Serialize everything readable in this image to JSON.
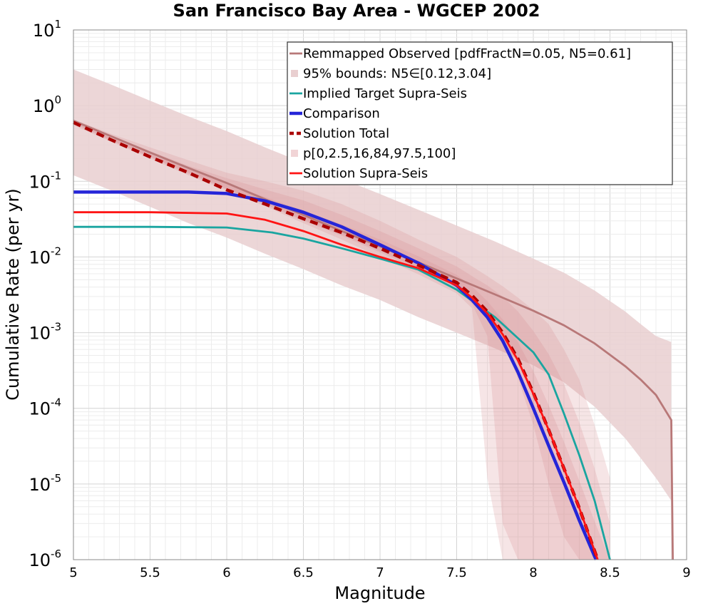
{
  "chart_data": {
    "type": "line",
    "title": "San Francisco Bay Area - WGCEP 2002",
    "xlabel": "Magnitude",
    "ylabel": "Cumulative Rate (per yr)",
    "xlim": [
      5,
      9
    ],
    "ylim": [
      1e-06,
      10
    ],
    "yscale": "log",
    "grid": true,
    "legend_position": "top-right",
    "x_ticks": [
      "5",
      "5.5",
      "6",
      "6.5",
      "7",
      "7.5",
      "8",
      "8.5",
      "9"
    ],
    "y_ticks": [
      {
        "base": "10",
        "exp": "1",
        "value": 10
      },
      {
        "base": "10",
        "exp": "0",
        "value": 1
      },
      {
        "base": "10",
        "exp": "-1",
        "value": 0.1
      },
      {
        "base": "10",
        "exp": "-2",
        "value": 0.01
      },
      {
        "base": "10",
        "exp": "-3",
        "value": 0.001
      },
      {
        "base": "10",
        "exp": "-4",
        "value": 0.0001
      },
      {
        "base": "10",
        "exp": "-5",
        "value": 1e-05
      },
      {
        "base": "10",
        "exp": "-6",
        "value": 1e-06
      }
    ],
    "series": [
      {
        "name": "Remmapped Observed [pdfFractN=0.05, N5=0.61]",
        "color": "#b87878",
        "style": "solid",
        "x": [
          5.0,
          5.25,
          5.5,
          5.75,
          6.0,
          6.25,
          6.5,
          6.75,
          7.0,
          7.25,
          7.5,
          7.75,
          8.0,
          8.2,
          8.4,
          8.6,
          8.7,
          8.8,
          8.9,
          8.91
        ],
        "y": [
          0.63,
          0.39,
          0.24,
          0.15,
          0.095,
          0.058,
          0.036,
          0.022,
          0.0138,
          0.0085,
          0.0052,
          0.0032,
          0.00195,
          0.00125,
          0.00072,
          0.00036,
          0.00024,
          0.00015,
          7e-05,
          1e-06
        ]
      },
      {
        "name": "Implied Target Supra-Seis",
        "color": "#1aa5a0",
        "style": "solid",
        "x": [
          5.0,
          5.5,
          6.0,
          6.3,
          6.5,
          6.75,
          7.0,
          7.25,
          7.5,
          7.75,
          8.0,
          8.1,
          8.2,
          8.3,
          8.4,
          8.5
        ],
        "y": [
          0.025,
          0.025,
          0.0245,
          0.021,
          0.0175,
          0.013,
          0.0095,
          0.0068,
          0.0037,
          0.0016,
          0.00055,
          0.00028,
          8.5e-05,
          2.4e-05,
          6e-06,
          1e-06
        ]
      },
      {
        "name": "Comparison",
        "color": "#2525d8",
        "style": "solid",
        "x": [
          5.0,
          5.5,
          5.75,
          6.0,
          6.25,
          6.5,
          6.75,
          7.0,
          7.25,
          7.5,
          7.6,
          7.7,
          7.8,
          7.9,
          8.0,
          8.1,
          8.2,
          8.3,
          8.4,
          8.41
        ],
        "y": [
          0.072,
          0.072,
          0.072,
          0.069,
          0.055,
          0.039,
          0.025,
          0.0145,
          0.0083,
          0.0042,
          0.0027,
          0.0016,
          0.00078,
          0.0003,
          0.0001,
          3.2e-05,
          1.05e-05,
          3.3e-06,
          1.1e-06,
          1e-06
        ]
      },
      {
        "name": "Solution Total",
        "color": "#aa0000",
        "style": "dashed",
        "x": [
          5.0,
          5.25,
          5.5,
          5.75,
          6.0,
          6.25,
          6.5,
          6.75,
          7.0,
          7.25,
          7.5,
          7.6,
          7.7,
          7.8,
          7.9,
          8.0,
          8.1,
          8.2,
          8.3,
          8.42
        ],
        "y": [
          0.6,
          0.35,
          0.21,
          0.13,
          0.077,
          0.05,
          0.032,
          0.021,
          0.013,
          0.0078,
          0.0046,
          0.0031,
          0.0019,
          0.001,
          0.00045,
          0.00016,
          5.2e-05,
          1.6e-05,
          4.8e-06,
          1e-06
        ]
      },
      {
        "name": "Solution Supra-Seis",
        "color": "#ff1414",
        "style": "solid",
        "x": [
          5.0,
          5.5,
          6.0,
          6.25,
          6.5,
          6.75,
          7.0,
          7.25,
          7.5,
          7.6,
          7.7,
          7.8,
          7.9,
          8.0,
          8.1,
          8.2,
          8.3,
          8.42
        ],
        "y": [
          0.039,
          0.039,
          0.0375,
          0.031,
          0.022,
          0.0145,
          0.01,
          0.0071,
          0.0042,
          0.0029,
          0.0018,
          0.00095,
          0.00043,
          0.000155,
          5.2e-05,
          1.6e-05,
          4.8e-06,
          1e-06
        ]
      }
    ],
    "bands": [
      {
        "name": "95% bounds: N5∈[0.12,3.04]",
        "color": "#e9cfd0",
        "opacity": 0.85,
        "x": [
          5.0,
          5.25,
          5.5,
          5.75,
          6.0,
          6.25,
          6.5,
          6.75,
          7.0,
          7.25,
          7.5,
          7.75,
          8.0,
          8.2,
          8.4,
          8.6,
          8.7,
          8.8,
          8.9
        ],
        "lower": [
          0.12,
          0.075,
          0.046,
          0.028,
          0.018,
          0.011,
          0.0069,
          0.0042,
          0.0027,
          0.0016,
          0.001,
          0.00062,
          0.00037,
          0.00022,
          0.000105,
          4e-05,
          2.2e-05,
          1.2e-05,
          6e-06
        ],
        "upper": [
          3.0,
          1.88,
          1.16,
          0.72,
          0.46,
          0.28,
          0.176,
          0.108,
          0.068,
          0.042,
          0.026,
          0.016,
          0.0095,
          0.0062,
          0.0036,
          0.0019,
          0.0013,
          0.0009,
          0.00075
        ]
      }
    ],
    "percentile_bands": {
      "name": "p[0,2.5,16,84,97.5,100]",
      "color": "#d88a8e",
      "opacity": 0.22,
      "x": [
        5.0,
        5.25,
        5.5,
        5.75,
        6.0,
        6.25,
        6.5,
        6.75,
        7.0,
        7.25,
        7.5,
        7.6,
        7.7,
        7.8,
        7.9,
        8.0,
        8.1,
        8.2,
        8.3,
        8.4,
        8.5
      ],
      "p0_100": {
        "lower": [
          0.55,
          0.33,
          0.2,
          0.12,
          0.075,
          0.047,
          0.028,
          0.017,
          0.01,
          0.0059,
          0.0033,
          0.0021,
          1.2e-05,
          1e-06,
          1e-06,
          1e-06,
          1e-06,
          1e-06,
          1e-06,
          1e-06,
          1e-06
        ],
        "upper": [
          0.66,
          0.42,
          0.28,
          0.19,
          0.13,
          0.1,
          0.075,
          0.05,
          0.03,
          0.017,
          0.01,
          0.0075,
          0.0056,
          0.0041,
          0.0029,
          0.002,
          0.0013,
          0.0006,
          0.00024,
          6e-05,
          1.2e-05
        ]
      },
      "p2_5_97_5": {
        "lower": [
          0.58,
          0.34,
          0.21,
          0.125,
          0.078,
          0.049,
          0.03,
          0.019,
          0.0115,
          0.0068,
          0.0039,
          0.0024,
          0.0009,
          3e-06,
          1e-06,
          1e-06,
          1e-06,
          1e-06,
          1e-06,
          1e-06,
          1e-06
        ],
        "upper": [
          0.64,
          0.4,
          0.25,
          0.16,
          0.11,
          0.078,
          0.056,
          0.036,
          0.022,
          0.013,
          0.0075,
          0.0056,
          0.0042,
          0.003,
          0.0019,
          0.00105,
          0.00052,
          0.00021,
          6.5e-05,
          1.6e-05,
          3e-06
        ]
      },
      "p16_84": {
        "lower": [
          0.59,
          0.345,
          0.21,
          0.13,
          0.079,
          0.05,
          0.031,
          0.02,
          0.012,
          0.0072,
          0.0042,
          0.0028,
          0.0016,
          0.00075,
          0.00025,
          6e-05,
          1e-05,
          2e-06,
          1e-06,
          1e-06,
          1e-06
        ],
        "upper": [
          0.62,
          0.37,
          0.23,
          0.145,
          0.092,
          0.062,
          0.041,
          0.027,
          0.017,
          0.0102,
          0.0058,
          0.0041,
          0.0026,
          0.0015,
          0.00075,
          0.00031,
          0.00011,
          3.6e-05,
          1.1e-05,
          3.2e-06,
          1e-06
        ]
      }
    }
  }
}
